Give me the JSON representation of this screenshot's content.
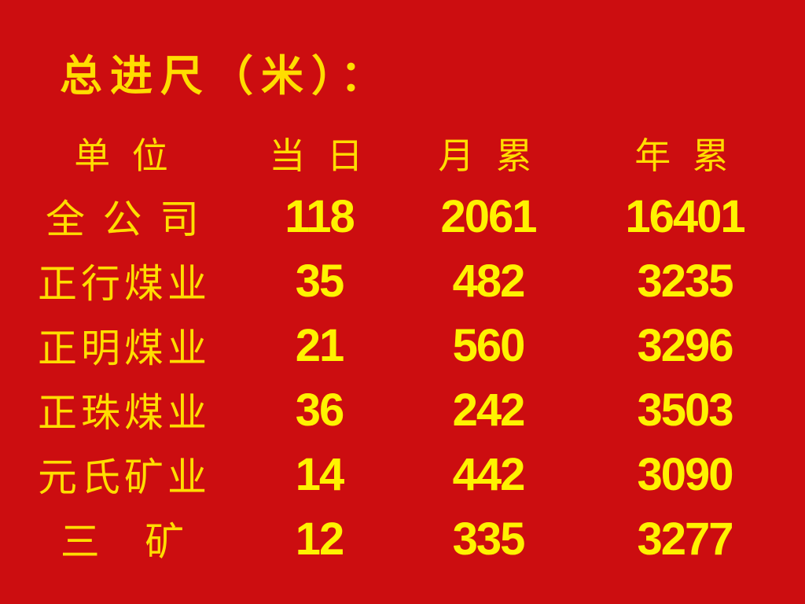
{
  "slide": {
    "kind": "presentation-slide",
    "background_color": "#CC0D10",
    "cjk_text_color": "#FFDD00",
    "number_text_color": "#FFF200",
    "title": "总进尺（米）：",
    "table": {
      "headers": [
        "单 位",
        "当 日",
        "月 累",
        "年 累"
      ],
      "rows": [
        {
          "unit": "全 公 司",
          "daily": "118",
          "month": "2061",
          "year": "16401"
        },
        {
          "unit": "正行煤业",
          "daily": "35",
          "month": "482",
          "year": "3235"
        },
        {
          "unit": "正明煤业",
          "daily": "21",
          "month": "560",
          "year": "3296"
        },
        {
          "unit": "正珠煤业",
          "daily": "36",
          "month": "242",
          "year": "3503"
        },
        {
          "unit": "元氏矿业",
          "daily": "14",
          "month": "442",
          "year": "3090"
        },
        {
          "unit": "三   矿",
          "daily": "12",
          "month": "335",
          "year": "3277"
        }
      ]
    }
  }
}
